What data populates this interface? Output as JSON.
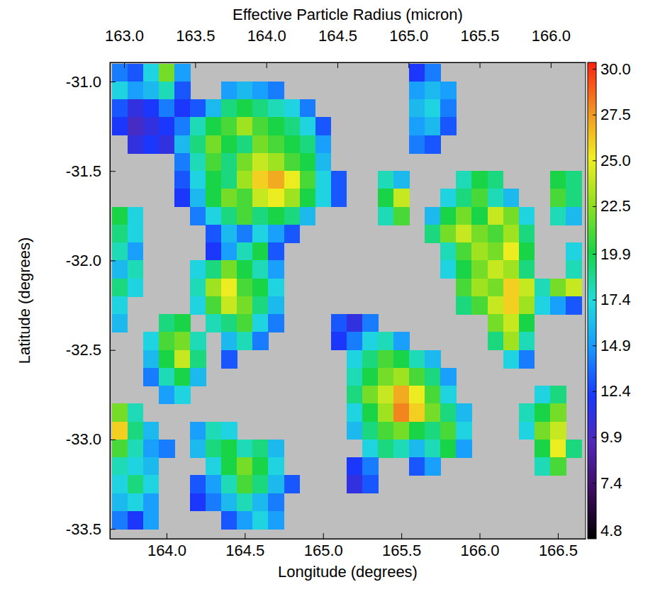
{
  "chart_data": {
    "type": "heatmap",
    "title": "Effective Particle Radius (micron)",
    "x_label": "Longitude (degrees)",
    "y_label": "Latitude (degrees)",
    "xlim": [
      163.638,
      166.677
    ],
    "ylim": [
      -33.555,
      -30.893
    ],
    "xticks": [
      {
        "value": 164,
        "label": "164.0"
      },
      164.5,
      {
        "value": 165,
        "label": "165.0"
      },
      165.5,
      {
        "value": 166,
        "label": "166.0"
      },
      166.5
    ],
    "yticks": [
      {
        "value": -31,
        "label": "-31.0"
      },
      -31.5,
      {
        "value": -32,
        "label": "-32.0"
      },
      -32.5,
      {
        "value": -33,
        "label": "-33.0"
      },
      -33.5
    ],
    "x2lim": [
      162.9,
      166.245
    ],
    "x2ticks": [
      {
        "value": 163,
        "label": "163.0"
      },
      163.5,
      {
        "value": 164,
        "label": "164.0"
      },
      164.5,
      {
        "value": 165,
        "label": "165.0"
      },
      165.5,
      {
        "value": 166,
        "label": "166.0"
      }
    ],
    "x": [
      163.7,
      163.8,
      163.9,
      164.0,
      164.1,
      164.2,
      164.3,
      164.4,
      164.5,
      164.6,
      164.7,
      164.8,
      164.9,
      165.0,
      165.1,
      165.2,
      165.3,
      165.4,
      165.5,
      165.6,
      165.7,
      165.8,
      165.9,
      166.0,
      166.1,
      166.2,
      166.3,
      166.4,
      166.5,
      166.6
    ],
    "y": [
      -30.95,
      -31.05,
      -31.15,
      -31.25,
      -31.35,
      -31.45,
      -31.55,
      -31.65,
      -31.75,
      -31.85,
      -31.95,
      -32.05,
      -32.15,
      -32.25,
      -32.35,
      -32.45,
      -32.55,
      -32.65,
      -32.75,
      -32.85,
      -32.95,
      -33.05,
      -33.15,
      -33.25,
      -33.35,
      -33.45
    ],
    "cells": [
      [
        14,
        13,
        17,
        22,
        15,
        null,
        null,
        null,
        null,
        null,
        null,
        null,
        null,
        null,
        null,
        null,
        null,
        null,
        null,
        12,
        14,
        null,
        null,
        null,
        null,
        null,
        null,
        null,
        null,
        null
      ],
      [
        17,
        15,
        16,
        18,
        13,
        null,
        null,
        15,
        16,
        15,
        14,
        null,
        null,
        null,
        null,
        null,
        null,
        null,
        null,
        15,
        16,
        15,
        null,
        null,
        null,
        null,
        null,
        null,
        null,
        null
      ],
      [
        13,
        11,
        12,
        14,
        12,
        13,
        16,
        19,
        20,
        19,
        18,
        17,
        14,
        null,
        null,
        null,
        null,
        null,
        null,
        16,
        17,
        14,
        null,
        null,
        null,
        null,
        null,
        null,
        null,
        null
      ],
      [
        12,
        10,
        11,
        12,
        14,
        18,
        20,
        21,
        23,
        21,
        20,
        19,
        17,
        13,
        null,
        null,
        null,
        null,
        null,
        15,
        16,
        13,
        null,
        null,
        null,
        null,
        null,
        null,
        null,
        null
      ],
      [
        null,
        11,
        12,
        11,
        16,
        19,
        22,
        20,
        19,
        22,
        21,
        20,
        19,
        15,
        null,
        null,
        null,
        null,
        null,
        14,
        13,
        null,
        null,
        null,
        null,
        null,
        null,
        null,
        null,
        null
      ],
      [
        null,
        null,
        null,
        null,
        14,
        18,
        21,
        19,
        22,
        24,
        23,
        21,
        20,
        16,
        null,
        null,
        null,
        null,
        null,
        null,
        null,
        null,
        null,
        null,
        null,
        null,
        null,
        null,
        null,
        null
      ],
      [
        null,
        null,
        null,
        null,
        13,
        17,
        20,
        19,
        23,
        26,
        27,
        25,
        21,
        17,
        13,
        null,
        null,
        18,
        16,
        null,
        null,
        null,
        18,
        20,
        19,
        null,
        null,
        null,
        20,
        19
      ],
      [
        null,
        null,
        null,
        null,
        12,
        16,
        20,
        22,
        21,
        24,
        25,
        23,
        20,
        17,
        13,
        null,
        null,
        20,
        24,
        null,
        null,
        17,
        19,
        21,
        18,
        16,
        null,
        null,
        21,
        19
      ],
      [
        20,
        17,
        null,
        null,
        null,
        14,
        17,
        19,
        21,
        19,
        20,
        19,
        16,
        null,
        null,
        null,
        null,
        18,
        21,
        null,
        16,
        20,
        22,
        20,
        24,
        22,
        17,
        null,
        18,
        16
      ],
      [
        19,
        17,
        null,
        null,
        null,
        null,
        13,
        16,
        14,
        17,
        15,
        13,
        null,
        null,
        null,
        null,
        null,
        null,
        null,
        null,
        19,
        22,
        24,
        22,
        21,
        23,
        19,
        null,
        null,
        null
      ],
      [
        18,
        15,
        null,
        null,
        null,
        null,
        12,
        15,
        18,
        20,
        13,
        null,
        null,
        null,
        null,
        null,
        null,
        null,
        null,
        null,
        null,
        18,
        21,
        23,
        22,
        25,
        20,
        null,
        null,
        17
      ],
      [
        16,
        18,
        null,
        null,
        null,
        17,
        19,
        22,
        20,
        18,
        15,
        null,
        null,
        null,
        null,
        null,
        null,
        null,
        null,
        null,
        null,
        17,
        20,
        22,
        24,
        23,
        19,
        null,
        null,
        18
      ],
      [
        19,
        17,
        null,
        null,
        null,
        18,
        23,
        25,
        21,
        20,
        17,
        null,
        null,
        null,
        null,
        null,
        null,
        null,
        null,
        null,
        null,
        null,
        21,
        23,
        22,
        26,
        24,
        18,
        22,
        24
      ],
      [
        17,
        null,
        null,
        null,
        null,
        17,
        21,
        24,
        22,
        19,
        16,
        null,
        null,
        null,
        null,
        null,
        null,
        null,
        null,
        null,
        null,
        null,
        19,
        21,
        24,
        26,
        23,
        17,
        15,
        13
      ],
      [
        16,
        null,
        null,
        19,
        20,
        null,
        18,
        19,
        21,
        17,
        14,
        null,
        null,
        null,
        13,
        11,
        14,
        null,
        null,
        null,
        null,
        null,
        null,
        null,
        22,
        24,
        20,
        null,
        null,
        null
      ],
      [
        null,
        null,
        17,
        21,
        22,
        18,
        null,
        16,
        18,
        14,
        null,
        null,
        null,
        null,
        12,
        14,
        17,
        18,
        15,
        null,
        null,
        null,
        null,
        null,
        19,
        23,
        18,
        null,
        null,
        null
      ],
      [
        null,
        null,
        16,
        20,
        24,
        19,
        null,
        13,
        null,
        null,
        null,
        null,
        null,
        null,
        null,
        17,
        19,
        21,
        20,
        18,
        16,
        null,
        null,
        null,
        null,
        17,
        14,
        null,
        null,
        null
      ],
      [
        null,
        null,
        14,
        18,
        20,
        16,
        null,
        null,
        null,
        null,
        null,
        null,
        null,
        null,
        null,
        18,
        20,
        22,
        23,
        21,
        19,
        15,
        null,
        null,
        null,
        null,
        null,
        null,
        null,
        null
      ],
      [
        null,
        null,
        null,
        15,
        17,
        null,
        null,
        null,
        null,
        null,
        null,
        null,
        null,
        null,
        null,
        19,
        22,
        24,
        27,
        25,
        21,
        17,
        null,
        null,
        null,
        null,
        null,
        17,
        19,
        null
      ],
      [
        22,
        18,
        null,
        null,
        null,
        null,
        null,
        null,
        null,
        null,
        null,
        null,
        null,
        null,
        null,
        17,
        20,
        23,
        28,
        26,
        22,
        19,
        16,
        null,
        null,
        null,
        18,
        20,
        22,
        null
      ],
      [
        26,
        19,
        16,
        null,
        null,
        15,
        18,
        17,
        null,
        null,
        null,
        null,
        null,
        null,
        null,
        16,
        19,
        21,
        22,
        20,
        19,
        21,
        17,
        null,
        null,
        null,
        17,
        22,
        24,
        null
      ],
      [
        21,
        18,
        15,
        14,
        null,
        16,
        19,
        20,
        18,
        19,
        16,
        null,
        null,
        null,
        null,
        null,
        17,
        19,
        18,
        16,
        18,
        20,
        15,
        null,
        null,
        null,
        null,
        20,
        25,
        19
      ],
      [
        18,
        17,
        16,
        null,
        null,
        null,
        17,
        20,
        22,
        20,
        17,
        null,
        null,
        null,
        null,
        12,
        14,
        null,
        null,
        13,
        15,
        null,
        null,
        null,
        null,
        null,
        null,
        18,
        21,
        null
      ],
      [
        17,
        19,
        17,
        null,
        null,
        13,
        15,
        18,
        21,
        19,
        16,
        13,
        null,
        null,
        null,
        11,
        13,
        null,
        null,
        null,
        null,
        null,
        null,
        null,
        null,
        null,
        null,
        null,
        null,
        null
      ],
      [
        16,
        17,
        15,
        null,
        null,
        12,
        14,
        16,
        18,
        16,
        14,
        null,
        null,
        null,
        null,
        null,
        null,
        null,
        null,
        null,
        null,
        null,
        null,
        null,
        null,
        null,
        null,
        null,
        null,
        null
      ],
      [
        14,
        12,
        15,
        null,
        null,
        null,
        null,
        13,
        15,
        17,
        15,
        null,
        null,
        null,
        null,
        null,
        null,
        null,
        null,
        null,
        null,
        null,
        null,
        null,
        null,
        null,
        null,
        null,
        null,
        null
      ]
    ],
    "colorbar": {
      "range": [
        4.35,
        30.35
      ],
      "ticks": [
        4.8,
        7.4,
        9.9,
        12.4,
        14.9,
        17.4,
        19.9,
        22.5,
        {
          "value": 25,
          "label": "25.0"
        },
        27.5,
        {
          "value": 30,
          "label": "30.0"
        }
      ]
    }
  }
}
